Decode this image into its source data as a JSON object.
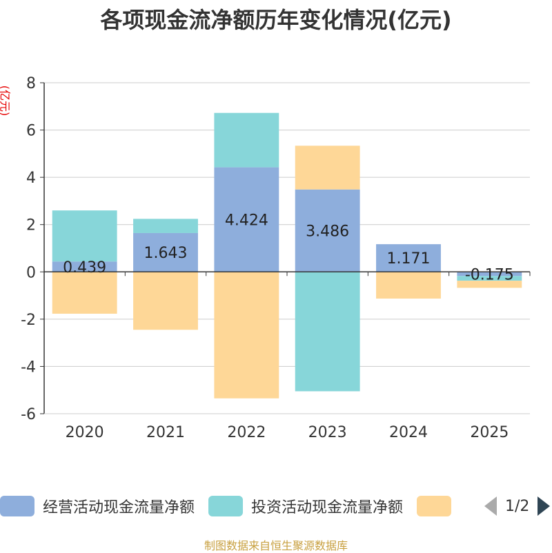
{
  "chart_data": {
    "type": "bar",
    "stacked": true,
    "title": "各项现金流净额历年变化情况(亿元)",
    "ylabel": "(亿元)",
    "categories": [
      "2020",
      "2021",
      "2022",
      "2023",
      "2024",
      "2025"
    ],
    "ylim": [
      -6,
      8
    ],
    "yticks": [
      -6,
      -4,
      -2,
      0,
      2,
      4,
      6,
      8
    ],
    "grid": true,
    "legend_position": "bottom",
    "series": [
      {
        "name": "经营活动现金流量净额",
        "color": "#8eaedc",
        "values": [
          0.439,
          1.643,
          4.424,
          3.486,
          1.171,
          -0.175
        ],
        "data_labels": [
          "0.439",
          "1.643",
          "4.424",
          "3.486",
          "1.171",
          "-0.175"
        ]
      },
      {
        "name": "投资活动现金流量净额",
        "color": "#87d6d9",
        "values": [
          2.16,
          0.6,
          2.3,
          -5.05,
          0,
          -0.2
        ]
      },
      {
        "name": "",
        "color": "#fed797",
        "values": [
          -1.77,
          -2.45,
          -5.35,
          1.85,
          -1.13,
          -0.3
        ]
      }
    ]
  },
  "legend": {
    "page_text": "1/2"
  },
  "source_text": "制图数据来自恒生聚源数据库"
}
